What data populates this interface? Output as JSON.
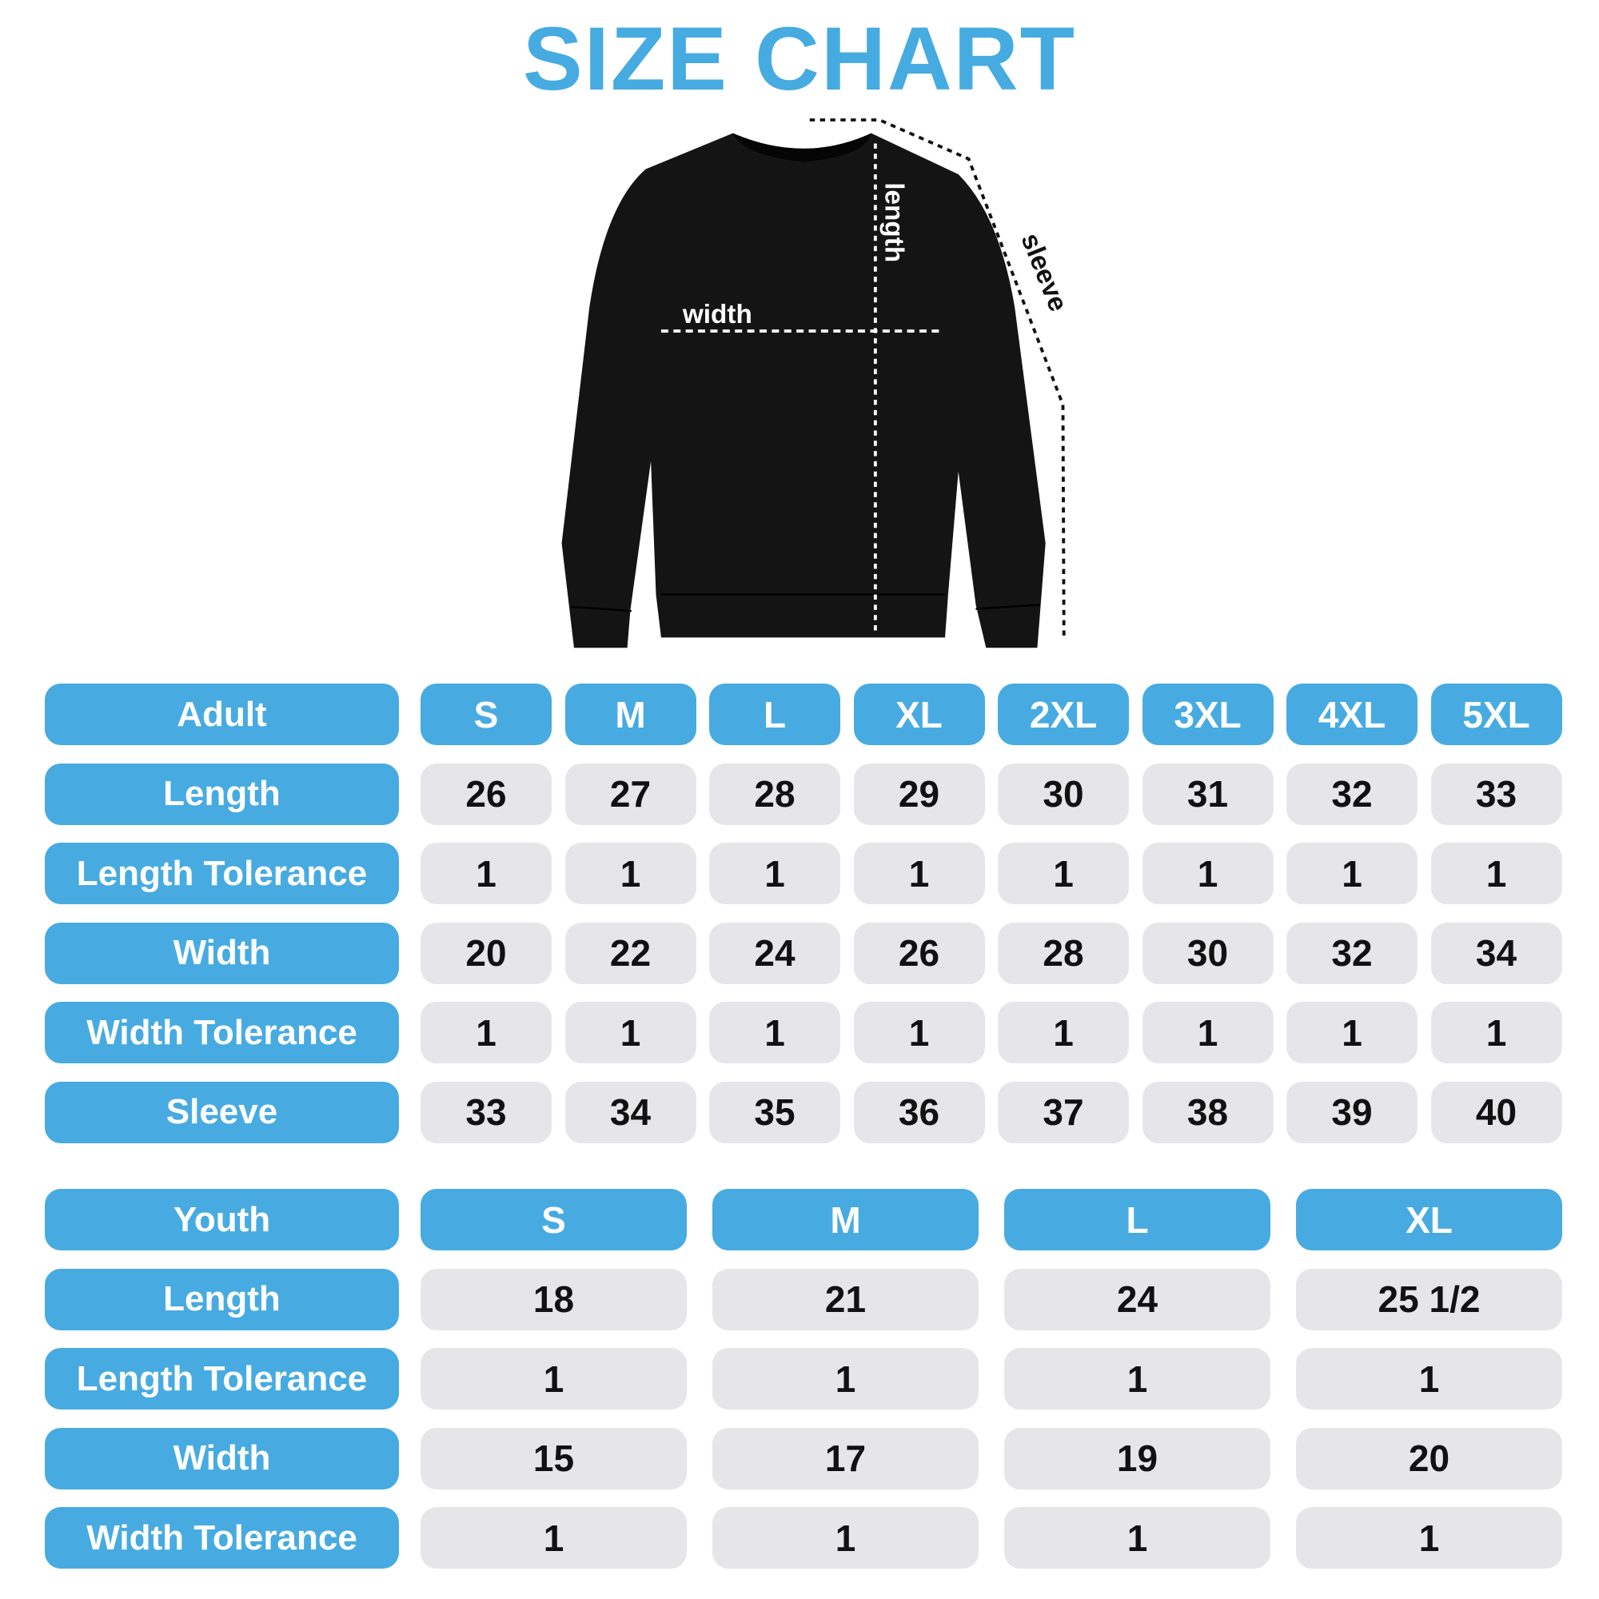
{
  "title": "SIZE CHART",
  "diagram": {
    "width_label": "width",
    "length_label": "length",
    "sleeve_label": "sleeve"
  },
  "colors": {
    "accent": "#47abe1",
    "cell": "#e6e6e8",
    "garment": "#111111"
  },
  "adult": {
    "header": "Adult",
    "sizes": [
      "S",
      "M",
      "L",
      "XL",
      "2XL",
      "3XL",
      "4XL",
      "5XL"
    ],
    "rows": [
      {
        "label": "Length",
        "values": [
          "26",
          "27",
          "28",
          "29",
          "30",
          "31",
          "32",
          "33"
        ]
      },
      {
        "label": "Length Tolerance",
        "values": [
          "1",
          "1",
          "1",
          "1",
          "1",
          "1",
          "1",
          "1"
        ]
      },
      {
        "label": "Width",
        "values": [
          "20",
          "22",
          "24",
          "26",
          "28",
          "30",
          "32",
          "34"
        ]
      },
      {
        "label": "Width Tolerance",
        "values": [
          "1",
          "1",
          "1",
          "1",
          "1",
          "1",
          "1",
          "1"
        ]
      },
      {
        "label": "Sleeve",
        "values": [
          "33",
          "34",
          "35",
          "36",
          "37",
          "38",
          "39",
          "40"
        ]
      }
    ]
  },
  "youth": {
    "header": "Youth",
    "sizes": [
      "S",
      "M",
      "L",
      "XL"
    ],
    "rows": [
      {
        "label": "Length",
        "values": [
          "18",
          "21",
          "24",
          "25 1/2"
        ]
      },
      {
        "label": "Length Tolerance",
        "values": [
          "1",
          "1",
          "1",
          "1"
        ]
      },
      {
        "label": "Width",
        "values": [
          "15",
          "17",
          "19",
          "20"
        ]
      },
      {
        "label": "Width Tolerance",
        "values": [
          "1",
          "1",
          "1",
          "1"
        ]
      }
    ]
  }
}
